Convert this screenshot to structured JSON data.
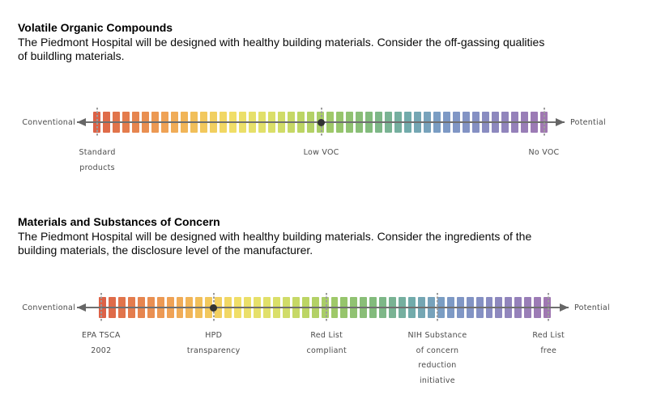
{
  "page": {
    "background": "#ffffff"
  },
  "sections": [
    {
      "title": "Volatile Organic Compounds",
      "description": "The Piedmont Hospital will be designed with healthy building materials. Consider the off-gassing qualities\nof buildling materials.",
      "scale": {
        "left_end_label": "Conventional",
        "right_end_label": "Potential",
        "markers": [
          {
            "position": 0.009,
            "dot": false,
            "label_lines": [
              "Standard",
              "products"
            ]
          },
          {
            "position": 0.502,
            "dot": true,
            "label_lines": [
              "Low VOC"
            ]
          },
          {
            "position": 0.992,
            "dot": false,
            "label_lines": [
              "No VOC"
            ]
          }
        ]
      }
    },
    {
      "title": "Materials and Substances of Concern",
      "description": "The Piedmont Hospital will be designed with healthy building materials. Consider the ingredients of the\nbuilding materials, the disclosure level of the manufacturer.",
      "scale": {
        "left_end_label": "Conventional",
        "right_end_label": "Potential",
        "markers": [
          {
            "position": 0.005,
            "dot": false,
            "label_lines": [
              "EPA TSCA",
              "2002"
            ]
          },
          {
            "position": 0.254,
            "dot": true,
            "label_lines": [
              "HPD",
              "transparency"
            ]
          },
          {
            "position": 0.504,
            "dot": false,
            "label_lines": [
              "Red List",
              "compliant"
            ]
          },
          {
            "position": 0.749,
            "dot": false,
            "label_lines": [
              "NIH Substance",
              "of concern",
              "reduction",
              "initiative"
            ]
          },
          {
            "position": 0.995,
            "dot": false,
            "label_lines": [
              "Red List",
              "free"
            ]
          }
        ]
      }
    }
  ],
  "scale_style": {
    "segment_count": 47,
    "gradient_stops": [
      "#dc6247",
      "#e5814e",
      "#efa355",
      "#f2c55b",
      "#f0df69",
      "#dde06a",
      "#bad464",
      "#98c66b",
      "#80ba7e",
      "#71acaa",
      "#7b9bc6",
      "#8590c3",
      "#9383bb",
      "#a078b2"
    ],
    "axis_line_color": "#6f6f6f",
    "arrowhead_color": "#666666",
    "tick_color": "#9c9c9c",
    "dot_color": "#323232",
    "label_color": "#4c4c4c"
  }
}
